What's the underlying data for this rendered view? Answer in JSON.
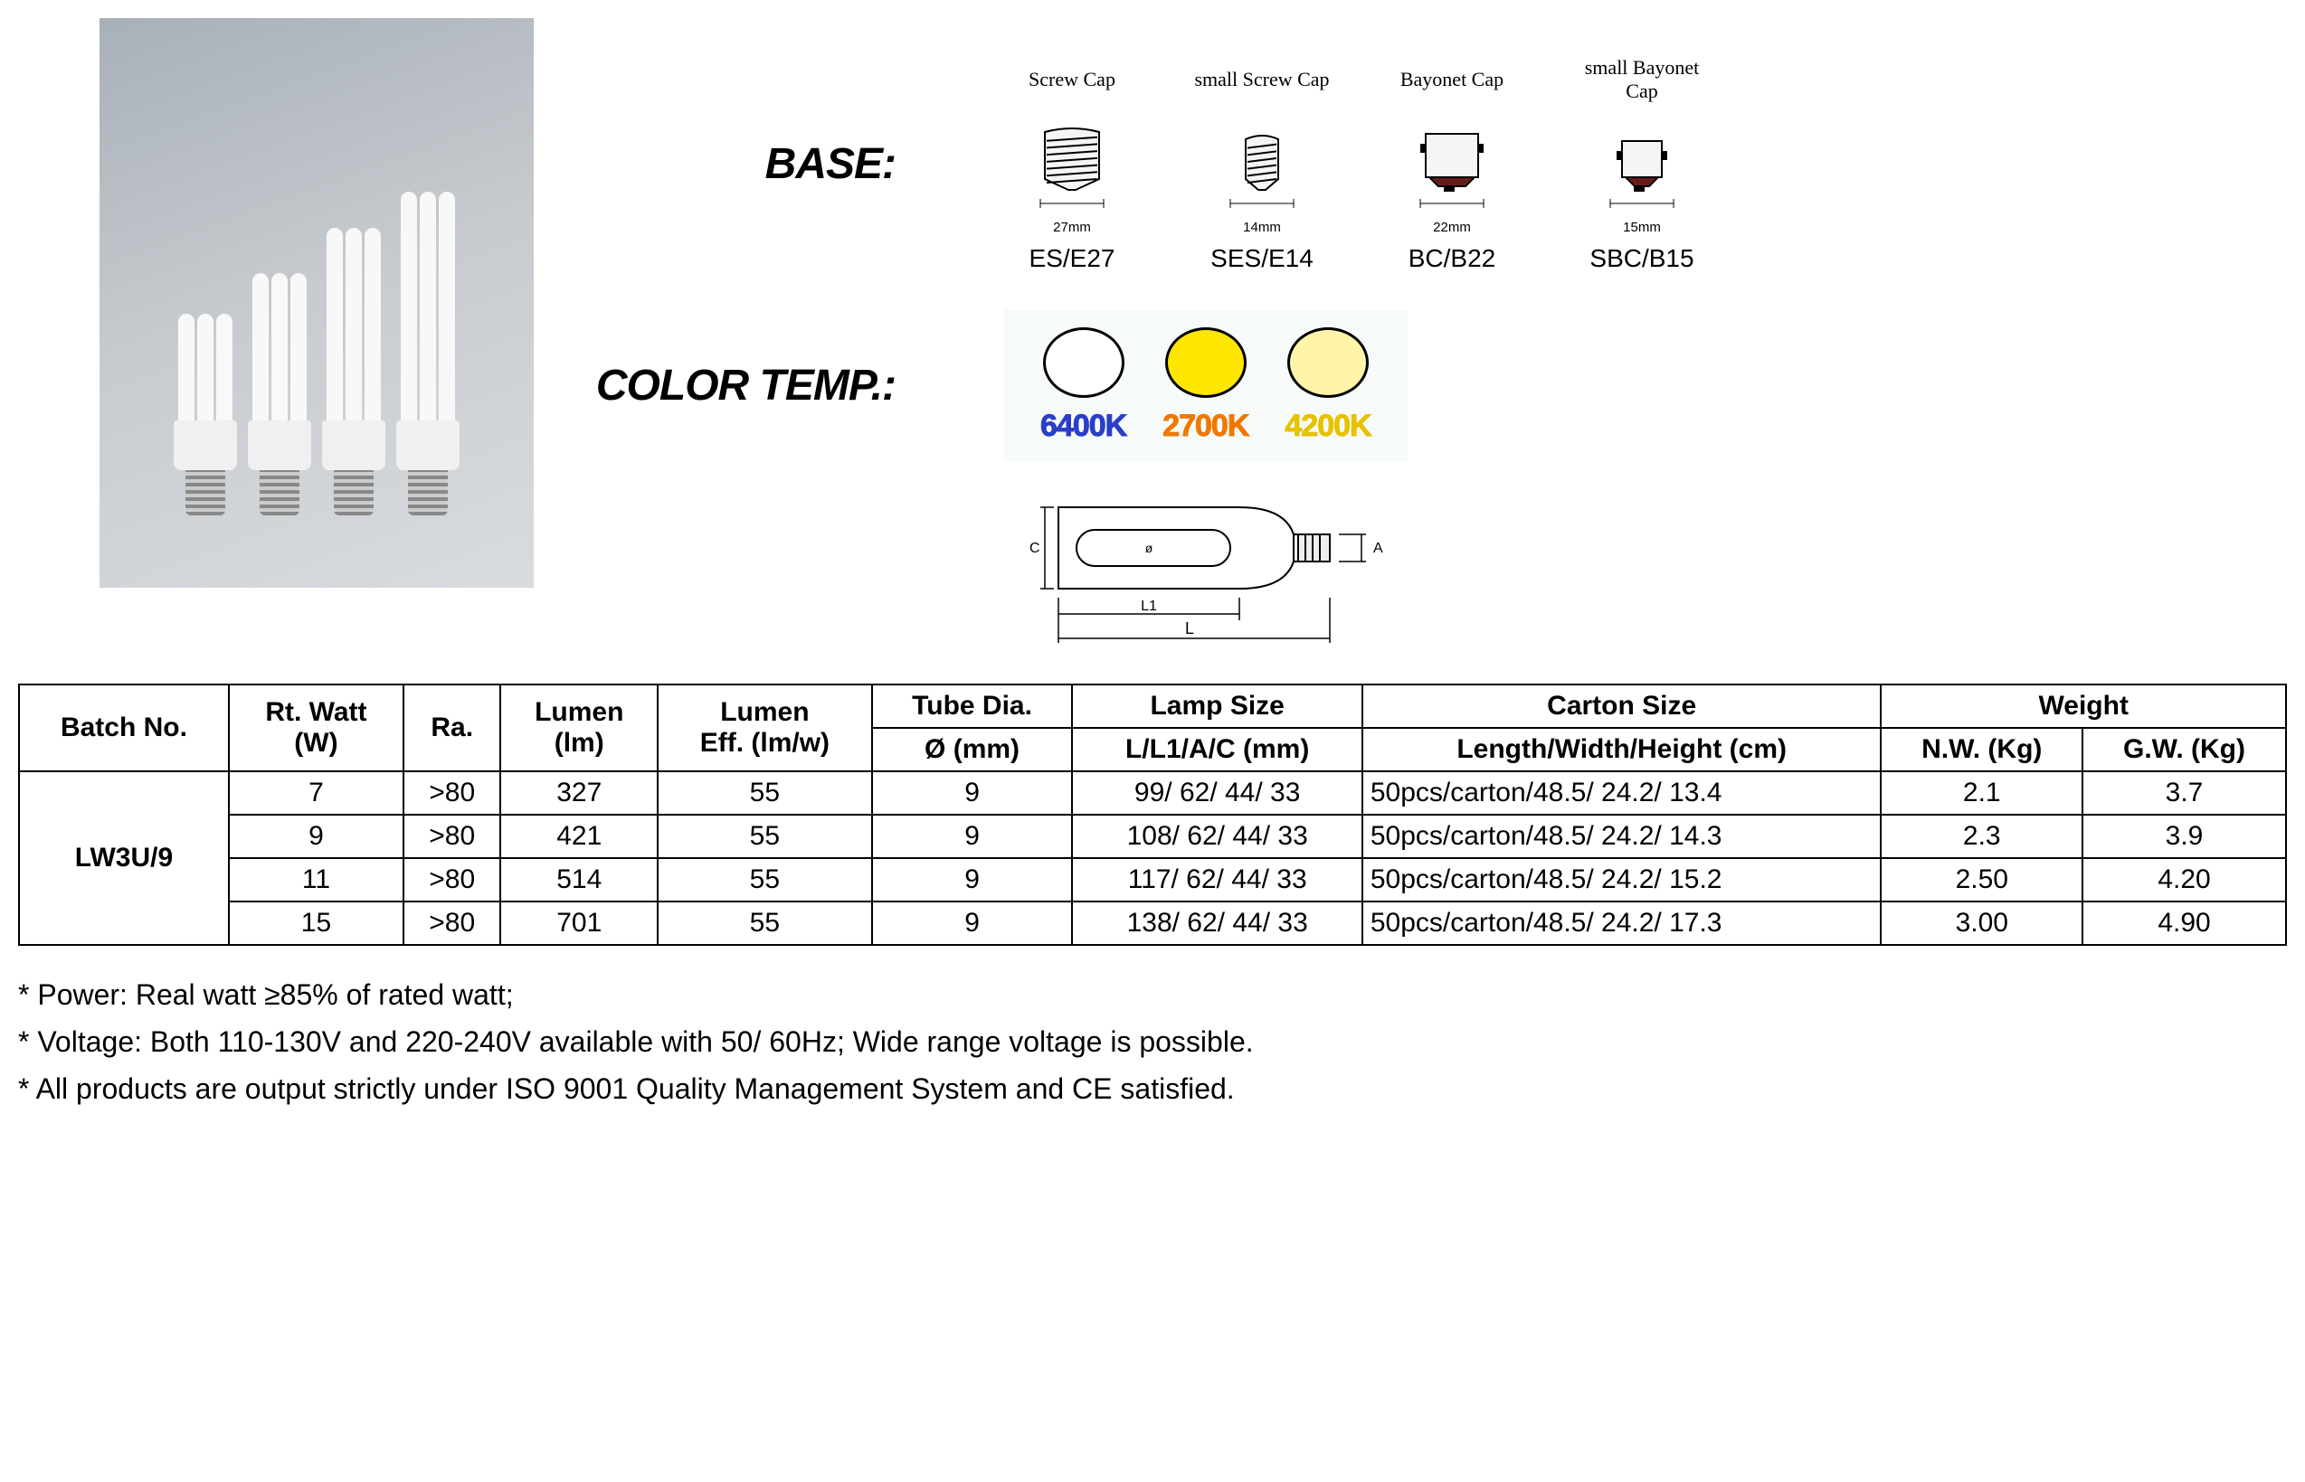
{
  "labels": {
    "base": "BASE:",
    "colorTemp": "COLOR TEMP.:"
  },
  "bases": [
    {
      "cap": "Screw Cap",
      "dim": "27mm",
      "code": "ES/E27",
      "type": "screw",
      "w": 64,
      "h": 74
    },
    {
      "cap": "small Screw Cap",
      "dim": "14mm",
      "code": "SES/E14",
      "type": "screw",
      "w": 40,
      "h": 66
    },
    {
      "cap": "Bayonet Cap",
      "dim": "22mm",
      "code": "BC/B22",
      "type": "bayonet",
      "w": 58,
      "h": 70
    },
    {
      "cap": "small Bayonet Cap",
      "dim": "15mm",
      "code": "SBC/B15",
      "type": "bayonet",
      "w": 44,
      "h": 62
    }
  ],
  "colorTemps": [
    {
      "k": "6400K",
      "fill": "#ffffff",
      "textColor": "#2a3ec8",
      "outline": "#2a3ec8"
    },
    {
      "k": "2700K",
      "fill": "#ffe600",
      "textColor": "#f07800",
      "outline": "#f07800"
    },
    {
      "k": "4200K",
      "fill": "#fff4a8",
      "textColor": "#e6c200",
      "outline": "#e6c200"
    }
  ],
  "photoBulbs": [
    {
      "tubeH": 120
    },
    {
      "tubeH": 165
    },
    {
      "tubeH": 215
    },
    {
      "tubeH": 255
    }
  ],
  "table": {
    "header1": [
      "Batch No.",
      "Rt. Watt (W)",
      "Ra.",
      "Lumen (lm)",
      "Lumen Eff. (lm/w)",
      "Tube Dia.",
      "Lamp Size",
      "Carton Size",
      "Weight"
    ],
    "header2": [
      "Ø (mm)",
      "L/L1/A/C (mm)",
      "Length/Width/Height (cm)",
      "N.W. (Kg)",
      "G.W. (Kg)"
    ],
    "batch": "LW3U/9",
    "rows": [
      [
        "7",
        ">80",
        "327",
        "55",
        "9",
        "99/ 62/ 44/ 33",
        "50pcs/carton/48.5/ 24.2/ 13.4",
        "2.1",
        "3.7"
      ],
      [
        "9",
        ">80",
        "421",
        "55",
        "9",
        "108/ 62/ 44/ 33",
        "50pcs/carton/48.5/ 24.2/ 14.3",
        "2.3",
        "3.9"
      ],
      [
        "11",
        ">80",
        "514",
        "55",
        "9",
        "117/ 62/ 44/ 33",
        "50pcs/carton/48.5/ 24.2/ 15.2",
        "2.50",
        "4.20"
      ],
      [
        "15",
        ">80",
        "701",
        "55",
        "9",
        "138/ 62/ 44/ 33",
        "50pcs/carton/48.5/ 24.2/ 17.3",
        "3.00",
        "4.90"
      ]
    ]
  },
  "notes": [
    "* Power: Real watt ≥85% of rated watt;",
    "* Voltage: Both 110-130V and 220-240V available with 50/ 60Hz; Wide range voltage is possible.",
    "* All products are output strictly under ISO 9001 Quality Management System and CE satisfied."
  ],
  "dimLabels": {
    "L": "L",
    "L1": "L1",
    "A": "A",
    "C": "C",
    "dia": "ø"
  }
}
